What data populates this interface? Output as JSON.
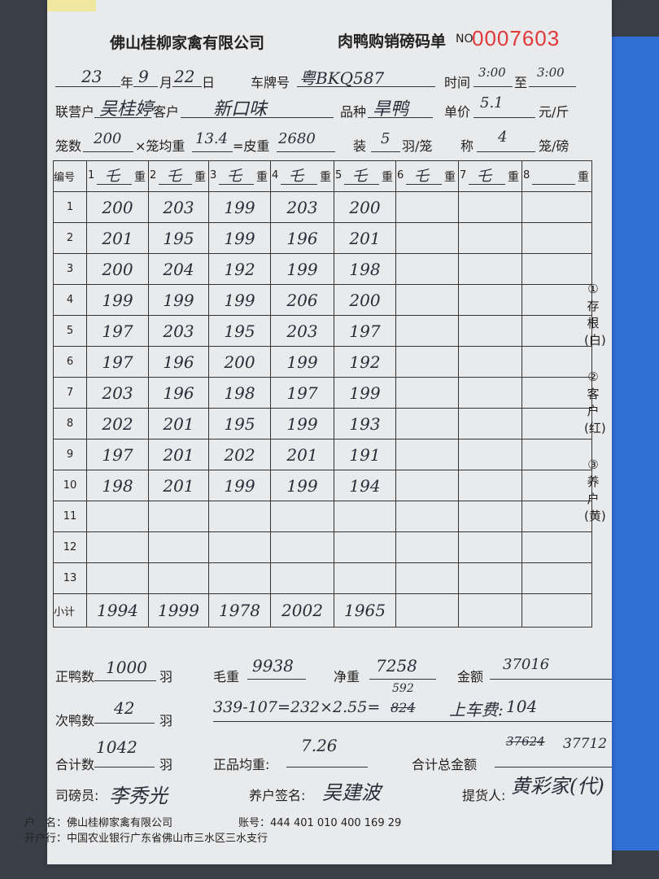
{
  "header": {
    "company": "佛山桂柳家禽有限公司",
    "form_title": "肉鸭购销磅码单",
    "no_label": "NO",
    "number": "0007603"
  },
  "fields": {
    "year": "23",
    "year_label": "年",
    "month": "9",
    "month_label": "月",
    "day": "22",
    "day_label": "日",
    "plate_label": "车牌号",
    "plate": "粤BKQ587",
    "time_label": "时间",
    "time_from": "3:00",
    "to_label": "至",
    "time_to": "3:00",
    "partner_label": "联营户",
    "partner": "吴桂婷",
    "customer_label": "客户",
    "customer": "新口味",
    "breed_label": "品种",
    "breed": "旱鸭",
    "price_label": "单价",
    "price": "5.1",
    "price_unit": "元/斤",
    "cages_label": "笼数",
    "cages": "200",
    "avg_cage_label": "×笼均重",
    "avg_cage": "13.4",
    "tare_label": "=皮重",
    "tare": "2680",
    "pack_label": "装",
    "pack": "5",
    "pack_unit": "羽/笼",
    "weigh_label": "称",
    "weigh": "4",
    "weigh_unit": "笼/磅"
  },
  "table": {
    "no_header": "编号",
    "weight_label": "重",
    "columns": [
      {
        "n": "1",
        "mark": "乇"
      },
      {
        "n": "2",
        "mark": "乇"
      },
      {
        "n": "3",
        "mark": "乇"
      },
      {
        "n": "4",
        "mark": "乇"
      },
      {
        "n": "5",
        "mark": "乇"
      },
      {
        "n": "6",
        "mark": "乇"
      },
      {
        "n": "7",
        "mark": "乇"
      },
      {
        "n": "8",
        "mark": ""
      }
    ],
    "rows": [
      {
        "no": "1",
        "values": [
          "200",
          "203",
          "199",
          "203",
          "200"
        ]
      },
      {
        "no": "2",
        "values": [
          "201",
          "195",
          "199",
          "196",
          "201"
        ]
      },
      {
        "no": "3",
        "values": [
          "200",
          "204",
          "192",
          "199",
          "198"
        ]
      },
      {
        "no": "4",
        "values": [
          "199",
          "199",
          "199",
          "206",
          "200"
        ]
      },
      {
        "no": "5",
        "values": [
          "197",
          "203",
          "195",
          "203",
          "197"
        ]
      },
      {
        "no": "6",
        "values": [
          "197",
          "196",
          "200",
          "199",
          "192"
        ]
      },
      {
        "no": "7",
        "values": [
          "203",
          "196",
          "198",
          "197",
          "199"
        ]
      },
      {
        "no": "8",
        "values": [
          "202",
          "201",
          "195",
          "199",
          "193"
        ]
      },
      {
        "no": "9",
        "values": [
          "197",
          "201",
          "202",
          "201",
          "191"
        ]
      },
      {
        "no": "10",
        "values": [
          "198",
          "201",
          "199",
          "199",
          "194"
        ]
      },
      {
        "no": "11",
        "values": []
      },
      {
        "no": "12",
        "values": []
      },
      {
        "no": "13",
        "values": []
      }
    ],
    "subtotal_label": "小计",
    "subtotals": [
      "1994",
      "1999",
      "1978",
      "2002",
      "1965"
    ]
  },
  "side_note": [
    "①存根(白)",
    "②客户(红)",
    "③养户(黄)"
  ],
  "summary": {
    "good_label": "正鸭数",
    "good": "1000",
    "good_unit": "羽",
    "gross_label": "毛重",
    "gross": "9938",
    "net_label": "净重",
    "net": "7258",
    "amount_label": "金额",
    "amount": "37016",
    "sub_label": "次鸭数",
    "sub": "42",
    "sub_unit": "羽",
    "calc": "339-107=232×2.55=",
    "calc_over": "592",
    "calc_struck": "824",
    "prev_label": "上车费:",
    "prev": "104",
    "total_label": "合计数",
    "total": "1042",
    "total_unit": "羽",
    "avg_label": "正品均重:",
    "avg": "7.26",
    "grand_label": "合计总金额",
    "grand_struck": "37624",
    "grand": "37712",
    "weigher_label": "司磅员:",
    "weigher": "李秀光",
    "farmer_label": "养户签名:",
    "farmer": "吴建波",
    "pickup_label": "提货人:",
    "pickup": "黄彩家(代)"
  },
  "footer": {
    "account_name": "户　名：佛山桂柳家禽有限公司",
    "account_no": "账号：444 401 010 400 169 29",
    "bank": "开户行：中国农业银行广东省佛山市三水区三水支行"
  }
}
